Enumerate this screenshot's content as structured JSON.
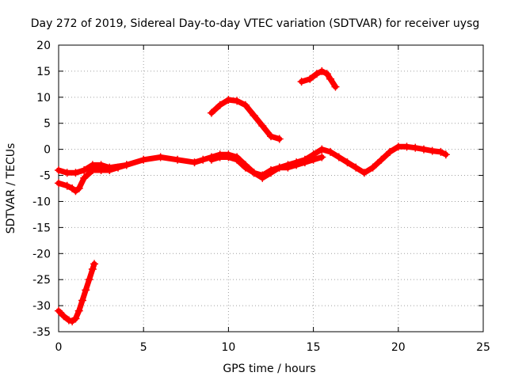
{
  "chart_data": {
    "type": "scatter",
    "title": "Day 272 of 2019, Sidereal Day-to-day VTEC variation (SDTVAR) for receiver uysg",
    "xlabel": "GPS time / hours",
    "ylabel": "SDTVAR / TECUs",
    "xlim": [
      0,
      25
    ],
    "ylim": [
      -35,
      20
    ],
    "xticks": [
      0,
      5,
      10,
      15,
      20,
      25
    ],
    "yticks": [
      -35,
      -30,
      -25,
      -20,
      -15,
      -10,
      -5,
      0,
      5,
      10,
      15,
      20
    ],
    "grid": true,
    "legend": "none",
    "marker": "+",
    "color": "#ff0000",
    "series": [
      {
        "name": "arc-low",
        "x": [
          0.0,
          0.3,
          0.6,
          0.8,
          1.0,
          1.2,
          1.4,
          1.6,
          1.8,
          2.0,
          2.1
        ],
        "y": [
          -31,
          -32,
          -32.8,
          -33,
          -32.5,
          -31,
          -29,
          -27,
          -25,
          -23,
          -22
        ]
      },
      {
        "name": "arc-main-upper",
        "x": [
          0.0,
          0.5,
          1.0,
          1.5,
          2.0,
          2.5,
          3.0,
          4.0,
          5.0,
          6.0,
          7.0,
          8.0,
          8.5,
          9.0,
          9.5,
          10.0,
          10.5,
          11.0,
          11.5,
          12.0,
          12.5,
          13.0,
          13.5,
          14.0,
          14.5,
          15.0,
          15.5,
          16.0,
          16.5,
          17.0,
          17.5,
          18.0,
          18.5,
          19.0,
          19.5,
          20.0,
          20.5,
          21.0,
          21.5,
          22.0,
          22.5,
          22.8
        ],
        "y": [
          -4,
          -4.5,
          -4.5,
          -4,
          -3,
          -3,
          -3.5,
          -3,
          -2,
          -1.5,
          -2,
          -2.5,
          -2,
          -1.5,
          -1,
          -1,
          -1.5,
          -3,
          -4.5,
          -5,
          -4,
          -3.5,
          -3,
          -2.5,
          -2,
          -1,
          0,
          -0.5,
          -1.5,
          -2.5,
          -3.5,
          -4.5,
          -3.5,
          -2,
          -0.5,
          0.5,
          0.5,
          0.3,
          0,
          -0.3,
          -0.5,
          -1
        ]
      },
      {
        "name": "arc-main-lower",
        "x": [
          0.0,
          0.5,
          0.8,
          1.0,
          1.2,
          1.5,
          2.0,
          2.5,
          3.0,
          3.5,
          4.0
        ],
        "y": [
          -6.5,
          -7,
          -7.5,
          -8,
          -7.5,
          -5.5,
          -4,
          -4,
          -4,
          -3.5,
          -3
        ]
      },
      {
        "name": "arc-mid-lower",
        "x": [
          9.0,
          9.5,
          10.0,
          10.5,
          11.0,
          11.5,
          12.0,
          12.5,
          13.0,
          13.5,
          14.0,
          14.5,
          15.0,
          15.5
        ],
        "y": [
          -2,
          -1.5,
          -1.5,
          -2,
          -3.5,
          -4.5,
          -5.5,
          -4.5,
          -3.5,
          -3.5,
          -3,
          -2.5,
          -2,
          -1.5
        ]
      },
      {
        "name": "arc-mid",
        "x": [
          9.0,
          9.5,
          10.0,
          10.5,
          11.0,
          11.5,
          12.0,
          12.5,
          13.0
        ],
        "y": [
          7,
          8.5,
          9.5,
          9.3,
          8.5,
          6.5,
          4.5,
          2.5,
          2
        ]
      },
      {
        "name": "arc-high",
        "x": [
          14.3,
          14.8,
          15.2,
          15.5,
          15.8,
          16.0,
          16.3
        ],
        "y": [
          13,
          13.5,
          14.5,
          15,
          14.5,
          13.5,
          12
        ]
      }
    ]
  }
}
